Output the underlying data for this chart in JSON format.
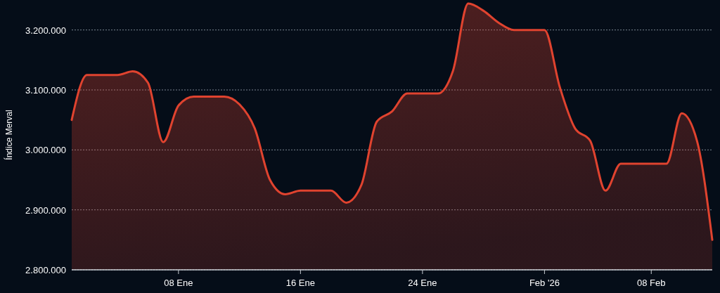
{
  "chart_data": {
    "type": "area",
    "ylabel": "Índice Merval",
    "x": [
      "2026-01-01",
      "2026-01-02",
      "2026-01-03",
      "2026-01-04",
      "2026-01-05",
      "2026-01-06",
      "2026-01-07",
      "2026-01-08",
      "2026-01-09",
      "2026-01-10",
      "2026-01-11",
      "2026-01-12",
      "2026-01-13",
      "2026-01-14",
      "2026-01-15",
      "2026-01-16",
      "2026-01-17",
      "2026-01-18",
      "2026-01-19",
      "2026-01-20",
      "2026-01-21",
      "2026-01-22",
      "2026-01-23",
      "2026-01-24",
      "2026-01-25",
      "2026-01-26",
      "2026-01-27",
      "2026-01-28",
      "2026-01-29",
      "2026-01-30",
      "2026-01-31",
      "2026-02-01",
      "2026-02-02",
      "2026-02-03",
      "2026-02-04",
      "2026-02-05",
      "2026-02-06",
      "2026-02-07",
      "2026-02-08",
      "2026-02-09",
      "2026-02-10",
      "2026-02-11",
      "2026-02-12"
    ],
    "series": [
      {
        "color": "#e0432f",
        "values": [
          3050000,
          3125000,
          3125000,
          3125000,
          3131000,
          3112000,
          3013000,
          3074000,
          3089000,
          3089000,
          3089000,
          3076000,
          3036000,
          2950000,
          2926000,
          2932000,
          2932000,
          2932000,
          2912000,
          2942000,
          3047000,
          3064000,
          3094000,
          3094000,
          3094000,
          3132000,
          3244000,
          3232000,
          3212000,
          3200000,
          3200000,
          3200000,
          3105000,
          3036000,
          3015000,
          2932000,
          2977000,
          2977000,
          2977000,
          2977000,
          3061000,
          3015000,
          2850000
        ]
      }
    ],
    "xlim": [
      "2026-01-01",
      "2026-02-12"
    ],
    "xticks": [
      {
        "value": "2026-01-08",
        "label": "08 Ene"
      },
      {
        "value": "2026-01-16",
        "label": "16 Ene"
      },
      {
        "value": "2026-01-24",
        "label": "24 Ene"
      },
      {
        "value": "2026-02-01",
        "label": "Feb '26"
      },
      {
        "value": "2026-02-08",
        "label": "08 Feb"
      }
    ],
    "ylim": [
      2800000,
      3250000
    ],
    "yticks": [
      {
        "value": 2800000,
        "label": "2.800.000"
      },
      {
        "value": 2900000,
        "label": "2.900.000"
      },
      {
        "value": 3000000,
        "label": "3.000.000"
      },
      {
        "value": 3100000,
        "label": "3.100.000"
      },
      {
        "value": 3200000,
        "label": "3.200.000"
      }
    ],
    "grid": "y"
  }
}
